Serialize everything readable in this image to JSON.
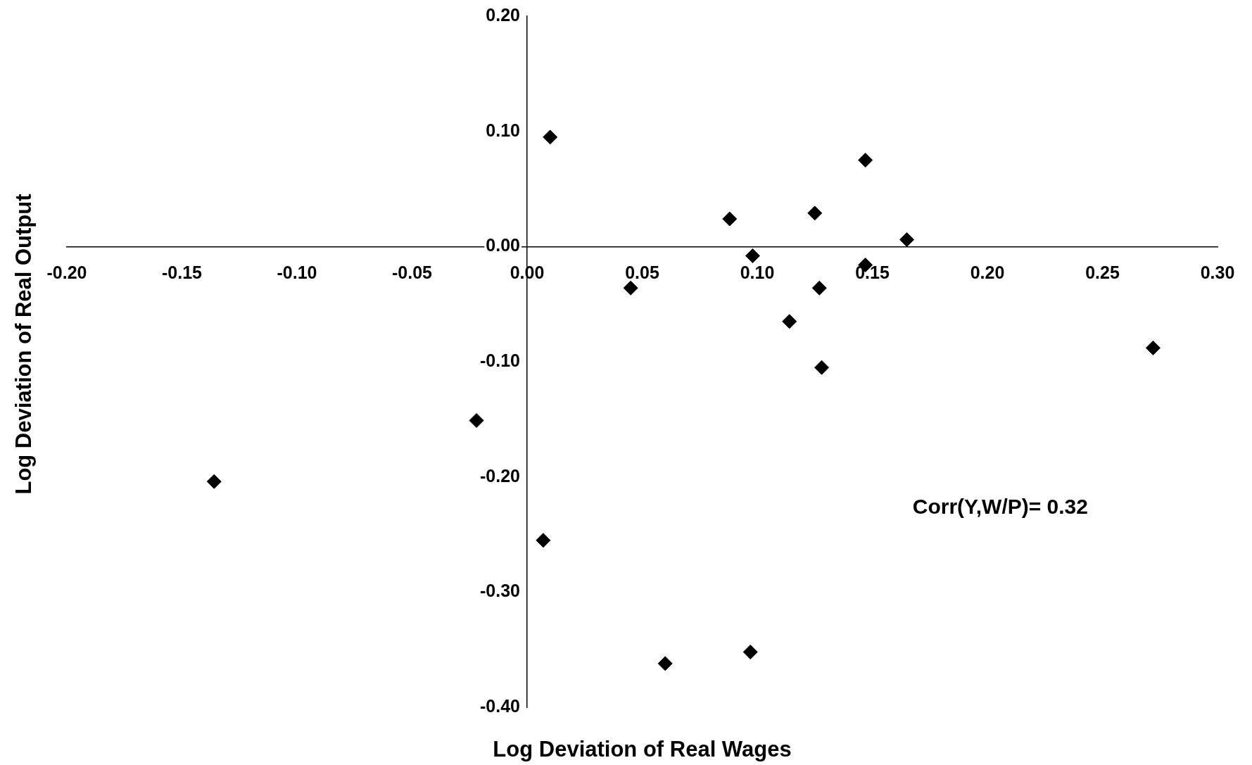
{
  "chart_data": {
    "type": "scatter",
    "xlabel": "Log Deviation of Real Wages",
    "ylabel": "Log Deviation of Real Output",
    "annotations": [
      "Corr(Y,W/P)= 0.32"
    ],
    "x": [
      0.01,
      0.147,
      0.088,
      0.125,
      0.165,
      0.098,
      0.147,
      0.045,
      0.127,
      0.114,
      0.128,
      0.272,
      -0.022,
      -0.136,
      0.007,
      0.06,
      0.097
    ],
    "values": [
      0.095,
      0.075,
      0.024,
      0.029,
      0.006,
      -0.008,
      -0.016,
      -0.036,
      -0.036,
      -0.065,
      -0.105,
      -0.088,
      -0.151,
      -0.204,
      -0.255,
      -0.362,
      -0.352
    ],
    "color": "#000000",
    "marker": "diamond",
    "grid": false,
    "legend": false,
    "xlim": [
      -0.2,
      0.3
    ],
    "xticks": [
      {
        "value": -0.2,
        "label": "-0.20"
      },
      {
        "value": -0.15,
        "label": "-0.15"
      },
      {
        "value": -0.1,
        "label": "-0.10"
      },
      {
        "value": -0.05,
        "label": "-0.05"
      },
      {
        "value": 0,
        "label": "0.00"
      },
      {
        "value": 0.05,
        "label": "0.05"
      },
      {
        "value": 0.1,
        "label": "0.10"
      },
      {
        "value": 0.15,
        "label": "0.15"
      },
      {
        "value": 0.2,
        "label": "0.20"
      },
      {
        "value": 0.25,
        "label": "0.25"
      },
      {
        "value": 0.3,
        "label": "0.30"
      }
    ],
    "ylim": [
      -0.4,
      0.2
    ],
    "yticks": [
      {
        "value": -0.4,
        "label": "-0.40"
      },
      {
        "value": -0.3,
        "label": "-0.30"
      },
      {
        "value": -0.2,
        "label": "-0.20"
      },
      {
        "value": -0.1,
        "label": "-0.10"
      },
      {
        "value": 0,
        "label": "0.00"
      },
      {
        "value": 0.1,
        "label": "0.10"
      },
      {
        "value": 0.2,
        "label": "0.20"
      }
    ]
  }
}
